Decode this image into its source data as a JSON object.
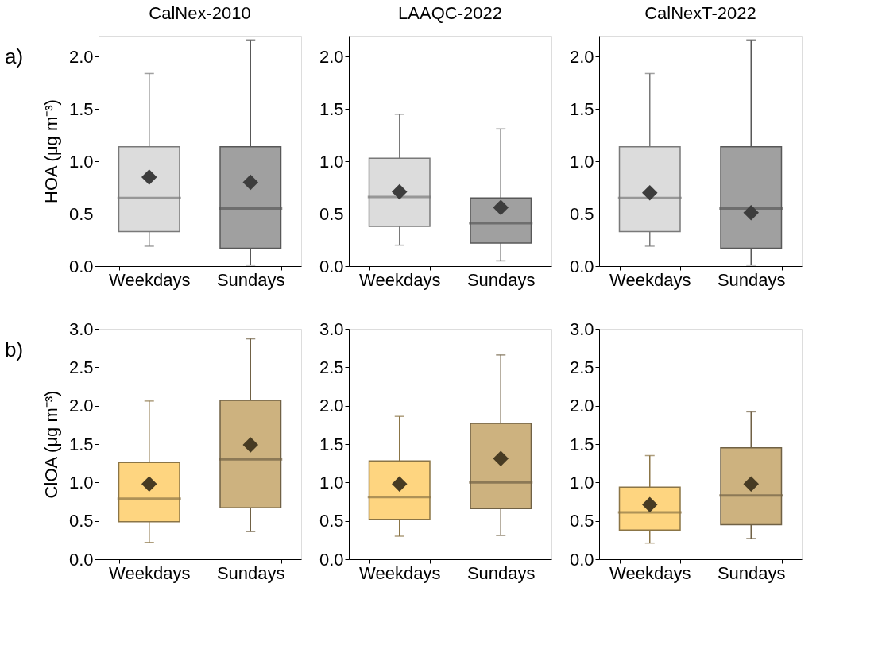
{
  "chart_data": [
    {
      "type": "box",
      "title": "CalNex-2010",
      "ylabel": "HOA (μg m⁻³)",
      "annotations": [
        "a)"
      ],
      "categories": [
        "Weekdays",
        "Sundays"
      ],
      "colors": [
        "#dcdcdc",
        "#a0a0a0"
      ],
      "marker": "diamond",
      "grid": false,
      "ylim": [
        0,
        2.2
      ],
      "yticks": [
        {
          "value": 0,
          "label": "0.0"
        },
        0.5,
        {
          "value": 1,
          "label": "1.0"
        },
        1.5,
        {
          "value": 2,
          "label": "2.0"
        }
      ],
      "boxes": [
        {
          "low": 0.19,
          "q1": 0.33,
          "median": 0.65,
          "q3": 1.14,
          "high": 1.84,
          "mean": 0.85
        },
        {
          "low": 0.01,
          "q1": 0.17,
          "median": 0.55,
          "q3": 1.14,
          "high": 2.16,
          "mean": 0.8
        }
      ]
    },
    {
      "type": "box",
      "title": "LAAQC-2022",
      "categories": [
        "Weekdays",
        "Sundays"
      ],
      "colors": [
        "#dcdcdc",
        "#a0a0a0"
      ],
      "marker": "diamond",
      "grid": false,
      "ylim": [
        0,
        2.2
      ],
      "yticks": [
        {
          "value": 0,
          "label": "0.0"
        },
        0.5,
        {
          "value": 1,
          "label": "1.0"
        },
        1.5,
        {
          "value": 2,
          "label": "2.0"
        }
      ],
      "boxes": [
        {
          "low": 0.2,
          "q1": 0.38,
          "median": 0.66,
          "q3": 1.03,
          "high": 1.45,
          "mean": 0.71
        },
        {
          "low": 0.05,
          "q1": 0.22,
          "median": 0.41,
          "q3": 0.65,
          "high": 1.31,
          "mean": 0.56
        }
      ]
    },
    {
      "type": "box",
      "title": "CalNexT-2022",
      "categories": [
        "Weekdays",
        "Sundays"
      ],
      "colors": [
        "#dcdcdc",
        "#a0a0a0"
      ],
      "marker": "diamond",
      "grid": false,
      "ylim": [
        0,
        2.2
      ],
      "yticks": [
        {
          "value": 0,
          "label": "0.0"
        },
        0.5,
        {
          "value": 1,
          "label": "1.0"
        },
        1.5,
        {
          "value": 2,
          "label": "2.0"
        }
      ],
      "boxes": [
        {
          "low": 0.19,
          "q1": 0.33,
          "median": 0.65,
          "q3": 1.14,
          "high": 1.84,
          "mean": 0.7
        },
        {
          "low": 0.01,
          "q1": 0.17,
          "median": 0.55,
          "q3": 1.14,
          "high": 2.16,
          "mean": 0.51
        }
      ]
    },
    {
      "type": "box",
      "ylabel": "ClOA (μg m⁻³)",
      "annotations": [
        "b)"
      ],
      "categories": [
        "Weekdays",
        "Sundays"
      ],
      "colors": [
        "#fed580",
        "#cdb27f"
      ],
      "marker": "diamond",
      "grid": false,
      "ylim": [
        0,
        3.0
      ],
      "yticks": [
        {
          "value": 0,
          "label": "0.0"
        },
        0.5,
        {
          "value": 1,
          "label": "1.0"
        },
        1.5,
        {
          "value": 2,
          "label": "2.0"
        },
        2.5,
        {
          "value": 3,
          "label": "3.0"
        }
      ],
      "boxes": [
        {
          "low": 0.22,
          "q1": 0.49,
          "median": 0.79,
          "q3": 1.26,
          "high": 2.06,
          "mean": 0.98
        },
        {
          "low": 0.36,
          "q1": 0.67,
          "median": 1.3,
          "q3": 2.07,
          "high": 2.87,
          "mean": 1.49
        }
      ]
    },
    {
      "type": "box",
      "categories": [
        "Weekdays",
        "Sundays"
      ],
      "colors": [
        "#fed580",
        "#cdb27f"
      ],
      "marker": "diamond",
      "grid": false,
      "ylim": [
        0,
        3.0
      ],
      "yticks": [
        {
          "value": 0,
          "label": "0.0"
        },
        0.5,
        {
          "value": 1,
          "label": "1.0"
        },
        1.5,
        {
          "value": 2,
          "label": "2.0"
        },
        2.5,
        {
          "value": 3,
          "label": "3.0"
        }
      ],
      "boxes": [
        {
          "low": 0.3,
          "q1": 0.52,
          "median": 0.81,
          "q3": 1.28,
          "high": 1.86,
          "mean": 0.98
        },
        {
          "low": 0.31,
          "q1": 0.66,
          "median": 1.0,
          "q3": 1.77,
          "high": 2.66,
          "mean": 1.31
        }
      ]
    },
    {
      "type": "box",
      "categories": [
        "Weekdays",
        "Sundays"
      ],
      "colors": [
        "#fed580",
        "#cdb27f"
      ],
      "marker": "diamond",
      "grid": false,
      "ylim": [
        0,
        3.0
      ],
      "yticks": [
        {
          "value": 0,
          "label": "0.0"
        },
        0.5,
        {
          "value": 1,
          "label": "1.0"
        },
        1.5,
        {
          "value": 2,
          "label": "2.0"
        },
        2.5,
        {
          "value": 3,
          "label": "3.0"
        }
      ],
      "boxes": [
        {
          "low": 0.21,
          "q1": 0.38,
          "median": 0.61,
          "q3": 0.94,
          "high": 1.35,
          "mean": 0.71
        },
        {
          "low": 0.27,
          "q1": 0.45,
          "median": 0.83,
          "q3": 1.45,
          "high": 1.92,
          "mean": 0.98
        }
      ]
    }
  ]
}
